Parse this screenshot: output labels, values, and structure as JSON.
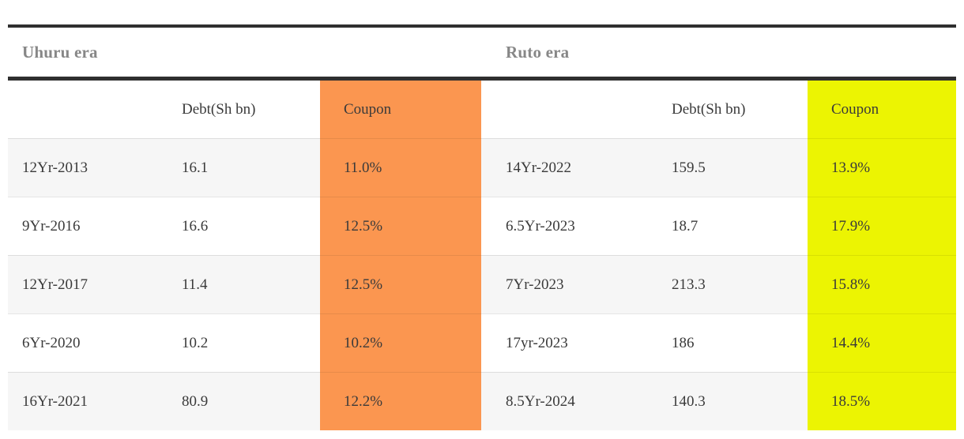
{
  "colors": {
    "uhuru_coupon_bg": "#fb9650",
    "ruto_coupon_bg": "#ecf402",
    "rule": "#2f2f2f",
    "era_title_text": "#878787",
    "body_text": "#3a3a3a",
    "stripe_row_bg": "#f6f6f6"
  },
  "chart_data": [
    {
      "type": "table",
      "title": "Uhuru era",
      "columns": [
        "",
        "Debt(Sh bn)",
        "Coupon"
      ],
      "highlight_column": "Coupon",
      "highlight_color": "#fb9650",
      "rows": [
        [
          "12Yr-2013",
          16.1,
          "11.0%"
        ],
        [
          "9Yr-2016",
          16.6,
          "12.5%"
        ],
        [
          "12Yr-2017",
          11.4,
          "12.5%"
        ],
        [
          "6Yr-2020",
          10.2,
          "10.2%"
        ],
        [
          "16Yr-2021",
          80.9,
          "12.2%"
        ]
      ]
    },
    {
      "type": "table",
      "title": "Ruto era",
      "columns": [
        "",
        "Debt(Sh bn)",
        "Coupon"
      ],
      "highlight_column": "Coupon",
      "highlight_color": "#ecf402",
      "rows": [
        [
          "14Yr-2022",
          159.5,
          "13.9%"
        ],
        [
          "6.5Yr-2023",
          18.7,
          "17.9%"
        ],
        [
          "7Yr-2023",
          213.3,
          "15.8%"
        ],
        [
          "17yr-2023",
          186,
          "14.4%"
        ],
        [
          "8.5Yr-2024",
          140.3,
          "18.5%"
        ]
      ]
    }
  ]
}
